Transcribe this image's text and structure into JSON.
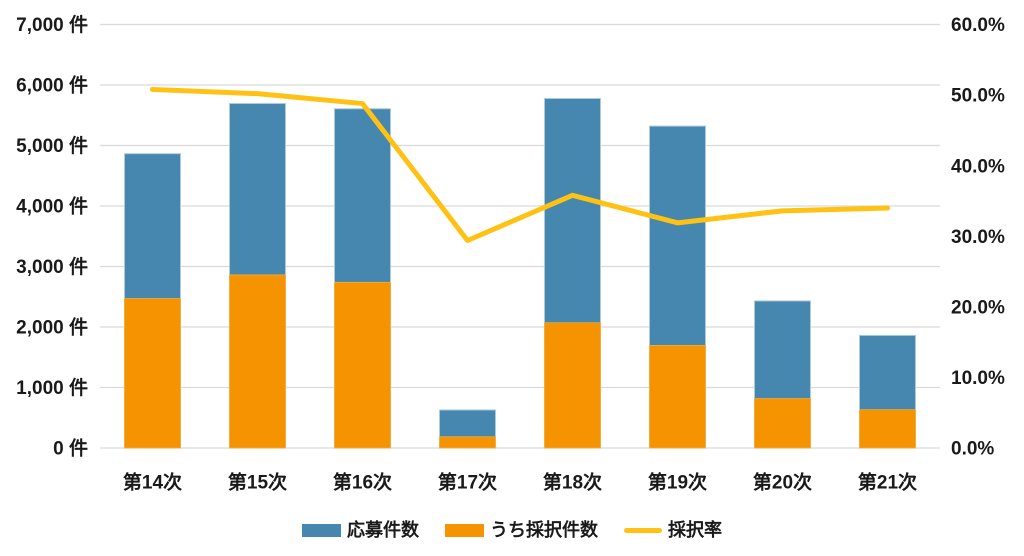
{
  "chart_data": {
    "type": "combo",
    "categories": [
      "第14次",
      "第15次",
      "第16次",
      "第17次",
      "第18次",
      "第19次",
      "第20次",
      "第21次"
    ],
    "series": [
      {
        "name": "応募件数",
        "type": "bar",
        "render": "total",
        "axis": "left",
        "color": "#4587AE",
        "border_color": "#AECBDC",
        "values": [
          4865,
          5694,
          5608,
          629,
          5777,
          5321,
          2431,
          1861
        ]
      },
      {
        "name": "うち採択件数",
        "type": "bar",
        "render": "subset-overlay",
        "axis": "left",
        "color": "#F59300",
        "border_color": "#F7AD3C",
        "values": [
          2470,
          2861,
          2738,
          185,
          2070,
          1695,
          817,
          633
        ]
      },
      {
        "name": "採択率",
        "type": "line",
        "axis": "right",
        "unit": "%",
        "color": "#FFC113",
        "values": [
          50.8,
          50.2,
          48.8,
          29.4,
          35.8,
          31.9,
          33.6,
          34.0
        ]
      }
    ],
    "left_axis": {
      "min": 0,
      "max": 7000,
      "step": 1000,
      "unit": "件",
      "tick_labels": [
        "0 件",
        "1,000 件",
        "2,000 件",
        "3,000 件",
        "4,000 件",
        "5,000 件",
        "6,000 件",
        "7,000 件"
      ]
    },
    "right_axis": {
      "min": 0,
      "max": 60,
      "step": 10,
      "unit": "%",
      "tick_labels": [
        "0.0%",
        "10.0%",
        "20.0%",
        "30.0%",
        "40.0%",
        "50.0%",
        "60.0%"
      ]
    },
    "grid": true,
    "grid_color": "#DADADA",
    "text_color": "#1A1A1A",
    "background": "#FFFFFF",
    "legend_position": "bottom"
  }
}
